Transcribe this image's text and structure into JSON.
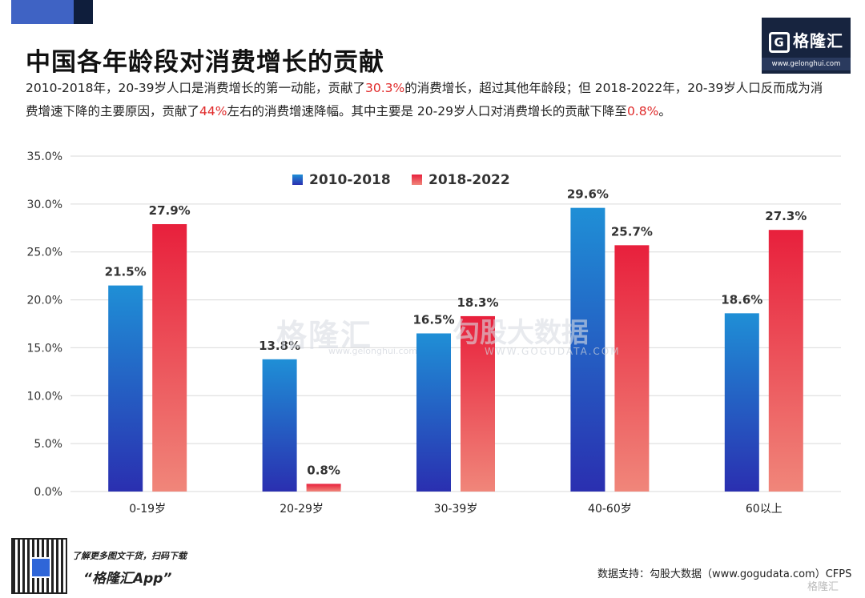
{
  "header": {
    "title": "中国各年龄段对消费增长的贡献",
    "subtitle_parts": [
      {
        "text": "2010-2018年，20-39岁人口是消费增长的第一动能，贡献了",
        "hl": false
      },
      {
        "text": "30.3%",
        "hl": true
      },
      {
        "text": "的消费增长，超过其他年龄段；但 2018-2022年，20-39岁人口反而成为消费增速下降的主要原因，贡献了",
        "hl": false
      },
      {
        "text": "44%",
        "hl": true
      },
      {
        "text": "左右的消费增速降幅。其中主要是 20-29岁人口对消费增长的贡献下降至",
        "hl": false
      },
      {
        "text": "0.8%",
        "hl": true
      },
      {
        "text": "。",
        "hl": false
      }
    ]
  },
  "logo": {
    "name": "格隆汇",
    "mark": "G",
    "url": "www.gelonghui.com"
  },
  "watermark": {
    "left_text": "格隆汇",
    "left_url": "www.gelonghui.com",
    "right_text": "勾股大数据",
    "right_url": "WWW.GOGUDATA.COM"
  },
  "footer": {
    "promo_line": "了解更多图文干货，扫码下载",
    "promo_app": "“格隆汇App”",
    "source": "数据支持：勾股大数据（www.gogudata.com）CFPS",
    "corner_logo": "格隆汇"
  },
  "colors": {
    "series1_top": "#1f8fd6",
    "series1_bottom": "#2a2fb0",
    "series2_top": "#e8203c",
    "series2_bottom": "#f0867a",
    "highlight": "#e02a2a"
  },
  "chart_data": {
    "type": "bar",
    "categories": [
      "0-19岁",
      "20-29岁",
      "30-39岁",
      "40-60岁",
      "60以上"
    ],
    "series": [
      {
        "name": "2010-2018",
        "values": [
          21.5,
          13.8,
          16.5,
          29.6,
          18.6
        ],
        "labels": [
          "21.5%",
          "13.8%",
          "16.5%",
          "29.6%",
          "18.6%"
        ]
      },
      {
        "name": "2018-2022",
        "values": [
          27.9,
          0.8,
          18.3,
          25.7,
          27.3
        ],
        "labels": [
          "27.9%",
          "0.8%",
          "18.3%",
          "25.7%",
          "27.3%"
        ]
      }
    ],
    "ylim": [
      0,
      35
    ],
    "yticks": [
      "0.0%",
      "5.0%",
      "10.0%",
      "15.0%",
      "20.0%",
      "25.0%",
      "30.0%",
      "35.0%"
    ],
    "grid": true,
    "legend": "top-center",
    "title": "",
    "xlabel": "",
    "ylabel": ""
  }
}
